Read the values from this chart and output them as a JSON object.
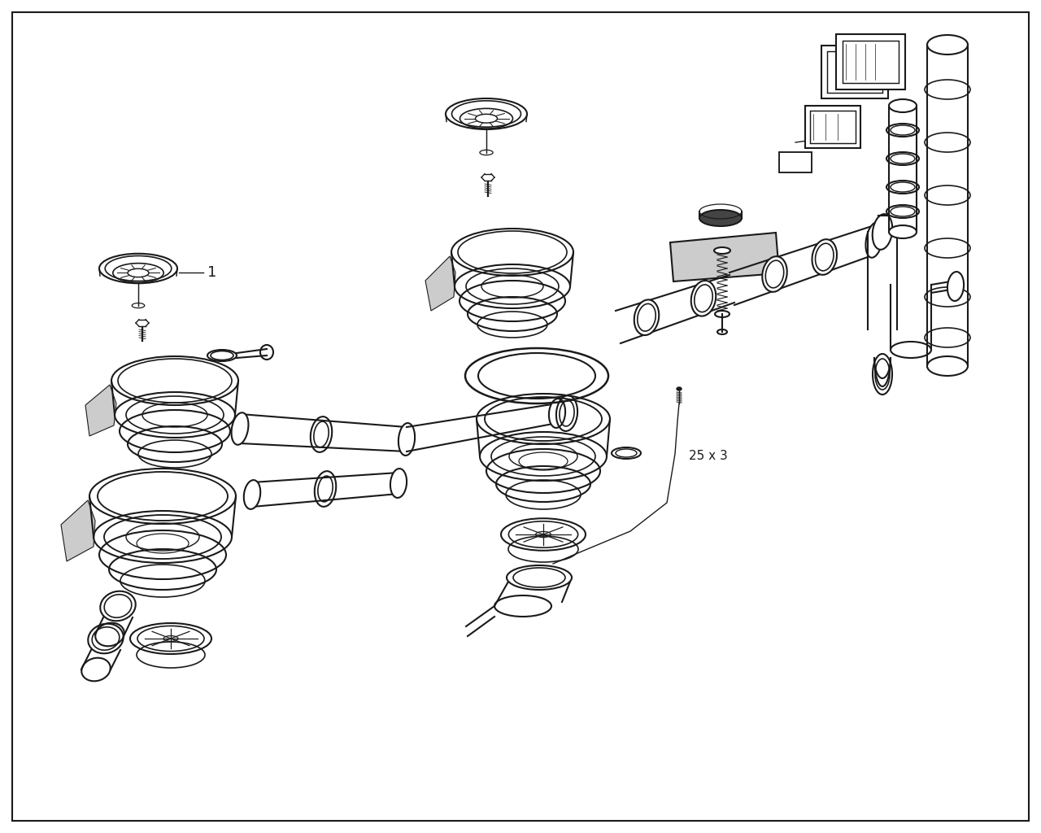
{
  "bg_color": "#ffffff",
  "line_color": "#1a1a1a",
  "gray_fill": "#aaaaaa",
  "light_gray": "#cccccc",
  "dark_gray": "#444444",
  "annotation_1": "1",
  "annotation_25x3": "25 x 3",
  "fig_width": 12.8,
  "fig_height": 10.24,
  "border_lw": 1.5
}
